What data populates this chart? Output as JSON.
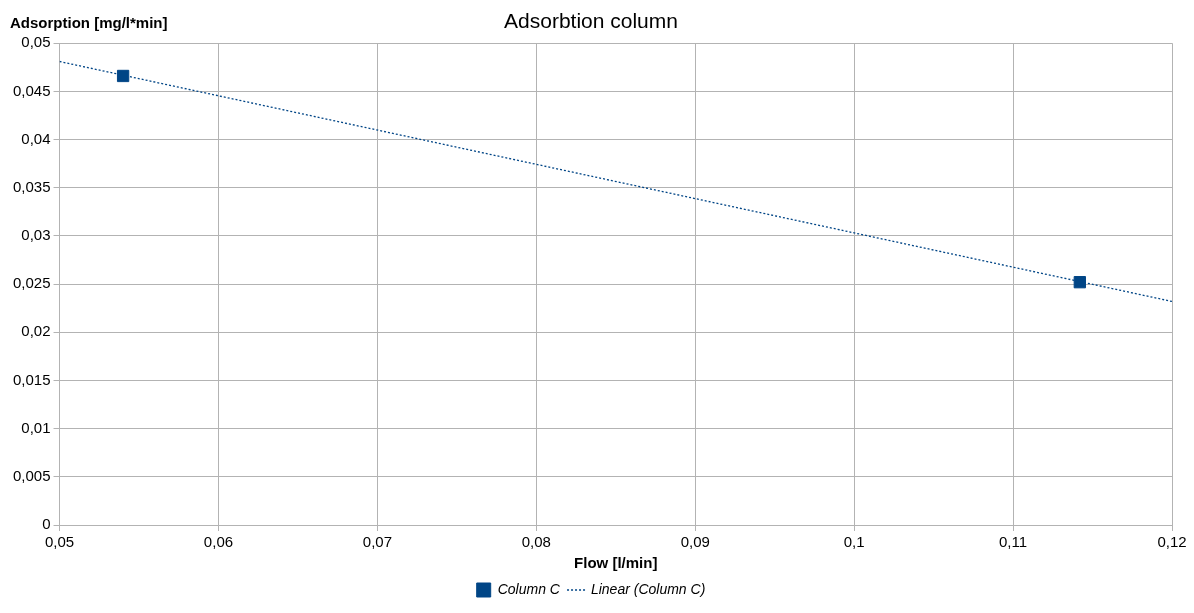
{
  "chart_data": {
    "type": "scatter",
    "title": "Adsorbtion column",
    "xlabel": "Flow [l/min]",
    "ylabel": "Adsorption [mg/l*min]",
    "xlim": [
      0.05,
      0.12
    ],
    "xticks": [
      {
        "value": 0.05,
        "label": "0,05"
      },
      {
        "value": 0.06,
        "label": "0,06"
      },
      {
        "value": 0.07,
        "label": "0,07"
      },
      {
        "value": 0.08,
        "label": "0,08"
      },
      {
        "value": 0.09,
        "label": "0,09"
      },
      {
        "value": 0.1,
        "label": "0,1"
      },
      {
        "value": 0.11,
        "label": "0,11"
      },
      {
        "value": 0.12,
        "label": "0,12"
      }
    ],
    "ylim": [
      0,
      0.05
    ],
    "yticks": [
      0,
      {
        "value": 0.005,
        "label": "0,005"
      },
      {
        "value": 0.01,
        "label": "0,01"
      },
      {
        "value": 0.015,
        "label": "0,015"
      },
      {
        "value": 0.02,
        "label": "0,02"
      },
      {
        "value": 0.025,
        "label": "0,025"
      },
      {
        "value": 0.03,
        "label": "0,03"
      },
      {
        "value": 0.035,
        "label": "0,035"
      },
      {
        "value": 0.04,
        "label": "0,04"
      },
      {
        "value": 0.045,
        "label": "0,045"
      },
      {
        "value": 0.05,
        "label": "0,05"
      }
    ],
    "grid": true,
    "legend": "bottom",
    "series": [
      {
        "name": "Column C",
        "type": "scatter",
        "color": "#004586",
        "marker": "square",
        "x": [
          0.054,
          0.1142
        ],
        "values": [
          0.0466,
          0.0252
        ]
      },
      {
        "name": "Linear (Column C)",
        "type": "line",
        "color": "#004586",
        "line_style": "dotted",
        "marker": "none",
        "x": [
          0.05,
          0.12
        ],
        "values": [
          0.0481,
          0.0232
        ]
      }
    ]
  }
}
